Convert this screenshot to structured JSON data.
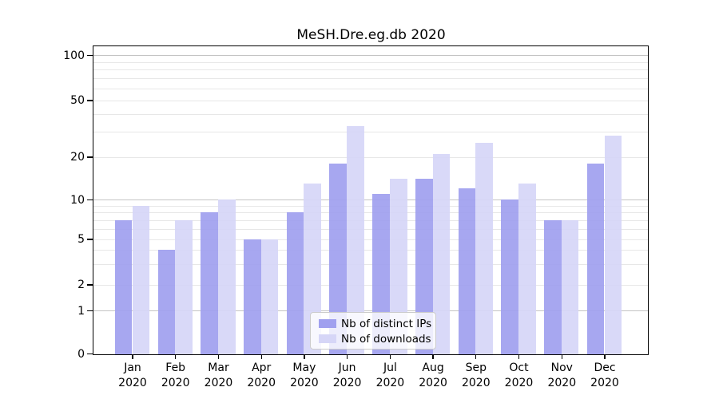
{
  "chart_data": {
    "type": "bar",
    "title": "MeSH.Dre.eg.db 2020",
    "categories": [
      "Jan 2020",
      "Feb 2020",
      "Mar 2020",
      "Apr 2020",
      "May 2020",
      "Jun 2020",
      "Jul 2020",
      "Aug 2020",
      "Sep 2020",
      "Oct 2020",
      "Nov 2020",
      "Dec 2020"
    ],
    "series": [
      {
        "name": "Nb of distinct IPs",
        "color": "#a0a0ef",
        "values": [
          7,
          4,
          8,
          5,
          8,
          18,
          11,
          14,
          12,
          10,
          7,
          18
        ]
      },
      {
        "name": "Nb of downloads",
        "color": "#d6d6f7",
        "values": [
          9,
          7,
          10,
          5,
          13,
          33,
          14,
          21,
          25,
          13,
          7,
          28
        ]
      }
    ],
    "xlabel": "",
    "ylabel": "",
    "y_axis": {
      "ticks": [
        0,
        1,
        2,
        5,
        10,
        20,
        50,
        100
      ],
      "minor_gridlines": [
        3,
        4,
        6,
        7,
        8,
        9,
        30,
        40,
        60,
        70,
        80,
        90
      ],
      "scale": "log-like with 0 baseline",
      "ylim": [
        0,
        115
      ]
    },
    "grid": "horizontal; darker lines on 1/10/100, faint lines on subdivisions",
    "legend_position": "inside plot, lower center"
  },
  "colors": {
    "background": "#ffffff",
    "axis": "#000000",
    "text": "#000000",
    "grid_major": "#c4c4c4",
    "grid_minor": "#e7e7e7",
    "bar_ips": "#a0a0ef",
    "bar_downloads": "#d6d6f7",
    "legend_border": "#cccccc"
  }
}
